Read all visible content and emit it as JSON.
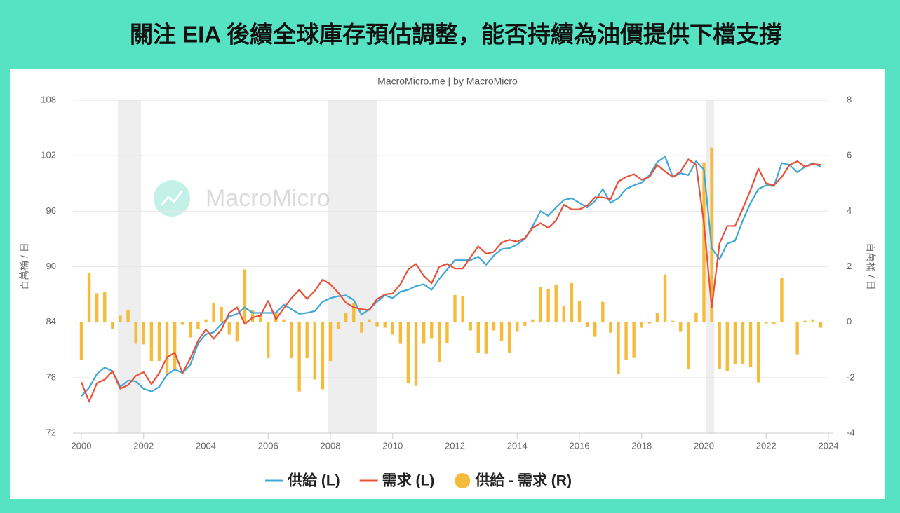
{
  "chart_data": {
    "type": "combo",
    "title": "關注 EIA 後續全球庫存預估調整，能否持續為油價提供下檔支撐",
    "subtitle": "MacroMicro.me | by MacroMicro",
    "watermark": "MacroMicro",
    "ylabel": "百萬桶 / 日",
    "y2label": "百萬桶 / 日",
    "x": [
      2000,
      2000.25,
      2000.5,
      2000.75,
      2001,
      2001.25,
      2001.5,
      2001.75,
      2002,
      2002.25,
      2002.5,
      2002.75,
      2003,
      2003.25,
      2003.5,
      2003.75,
      2004,
      2004.25,
      2004.5,
      2004.75,
      2005,
      2005.25,
      2005.5,
      2005.75,
      2006,
      2006.25,
      2006.5,
      2006.75,
      2007,
      2007.25,
      2007.5,
      2007.75,
      2008,
      2008.25,
      2008.5,
      2008.75,
      2009,
      2009.25,
      2009.5,
      2009.75,
      2010,
      2010.25,
      2010.5,
      2010.75,
      2011,
      2011.25,
      2011.5,
      2011.75,
      2012,
      2012.25,
      2012.5,
      2012.75,
      2013,
      2013.25,
      2013.5,
      2013.75,
      2014,
      2014.25,
      2014.5,
      2014.75,
      2015,
      2015.25,
      2015.5,
      2015.75,
      2016,
      2016.25,
      2016.5,
      2016.75,
      2017,
      2017.25,
      2017.5,
      2017.75,
      2018,
      2018.25,
      2018.5,
      2018.75,
      2019,
      2019.25,
      2019.5,
      2019.75,
      2020,
      2020.25,
      2020.5,
      2020.75,
      2021,
      2021.25,
      2021.5,
      2021.75,
      2022,
      2022.25,
      2022.5,
      2022.75,
      2023,
      2023.25,
      2023.5,
      2023.75
    ],
    "series": [
      {
        "name": "供給 (L)",
        "kind": "line",
        "color": "#3ea8d8",
        "values": [
          76.0,
          76.9,
          78.4,
          79.1,
          78.7,
          77.0,
          77.7,
          77.6,
          76.8,
          76.5,
          77.0,
          78.3,
          78.9,
          78.5,
          79.4,
          81.7,
          82.7,
          82.9,
          83.8,
          84.6,
          84.9,
          85.6,
          85.0,
          85.0,
          85.0,
          85.0,
          85.9,
          85.4,
          84.9,
          85.0,
          85.2,
          86.2,
          86.6,
          86.8,
          86.9,
          86.4,
          84.8,
          85.4,
          86.2,
          86.9,
          86.6,
          87.3,
          87.5,
          87.9,
          88.1,
          87.5,
          88.7,
          89.7,
          90.7,
          90.7,
          90.7,
          91.1,
          90.2,
          91.2,
          91.9,
          92.0,
          92.4,
          93.0,
          94.4,
          96.0,
          95.5,
          96.4,
          97.2,
          97.4,
          96.9,
          96.4,
          97.1,
          98.4,
          96.9,
          97.4,
          98.4,
          98.8,
          99.1,
          99.9,
          101.3,
          101.9,
          99.7,
          100.1,
          99.9,
          101.4,
          100.5,
          92.0,
          90.8,
          92.5,
          92.8,
          95.0,
          96.9,
          98.4,
          98.8,
          98.7,
          101.2,
          101.0,
          100.2,
          100.8,
          101.2,
          100.8
        ]
      },
      {
        "name": "需求 (L)",
        "kind": "line",
        "color": "#e8503a",
        "values": [
          77.5,
          75.4,
          77.4,
          77.8,
          78.7,
          76.8,
          77.2,
          78.2,
          78.6,
          77.3,
          78.5,
          80.2,
          80.7,
          78.5,
          80.1,
          82.0,
          83.2,
          82.2,
          83.2,
          85.0,
          85.6,
          83.8,
          84.5,
          84.7,
          86.3,
          84.3,
          85.5,
          86.6,
          87.5,
          86.5,
          87.4,
          88.6,
          88.1,
          87.2,
          86.1,
          85.6,
          85.4,
          85.3,
          86.5,
          87.0,
          87.1,
          88.1,
          89.7,
          90.3,
          89.0,
          88.2,
          90.0,
          90.3,
          89.8,
          89.8,
          91.0,
          92.2,
          91.4,
          91.6,
          92.6,
          92.9,
          92.7,
          93.1,
          94.2,
          94.7,
          94.2,
          95.0,
          96.7,
          96.2,
          96.2,
          96.6,
          97.5,
          97.5,
          97.3,
          99.2,
          99.7,
          100.0,
          99.4,
          99.7,
          101.0,
          100.3,
          99.7,
          100.3,
          101.6,
          101.0,
          94.7,
          85.6,
          92.5,
          94.4,
          94.4,
          96.3,
          98.3,
          100.6,
          99.0,
          98.8,
          99.7,
          101.0,
          101.4,
          100.8,
          101.1,
          101.0
        ]
      },
      {
        "name": "供給 - 需求 (R)",
        "kind": "bar",
        "axis": "y2",
        "color": "#f5bb3a",
        "values": [
          -1.35,
          1.77,
          1.04,
          1.09,
          -0.25,
          0.23,
          0.43,
          -0.78,
          -0.8,
          -1.4,
          -1.4,
          -1.9,
          -1.7,
          -0.1,
          -0.55,
          -0.25,
          0.1,
          0.68,
          0.55,
          -0.45,
          -0.7,
          1.9,
          0.43,
          0.25,
          -1.3,
          0.33,
          0.1,
          -1.3,
          -2.5,
          -1.3,
          -2.07,
          -2.42,
          -1.4,
          -0.25,
          0.33,
          0.68,
          -0.38,
          0.1,
          -0.15,
          -0.2,
          -0.45,
          -0.78,
          -2.2,
          -2.3,
          -0.78,
          -0.6,
          -1.44,
          -0.76,
          0.98,
          0.93,
          -0.3,
          -1.1,
          -1.14,
          -0.3,
          -0.68,
          -1.1,
          -0.35,
          -0.13,
          0.1,
          1.26,
          1.19,
          1.36,
          0.6,
          1.41,
          0.76,
          -0.18,
          -0.53,
          0.73,
          -0.38,
          -1.87,
          -1.36,
          -1.29,
          -0.2,
          -0.05,
          0.33,
          1.72,
          0.05,
          -0.35,
          -1.69,
          0.35,
          5.76,
          6.29,
          -1.69,
          -1.77,
          -1.52,
          -1.52,
          -1.62,
          -2.17,
          -0.05,
          -0.08,
          1.59,
          0.02,
          -1.16,
          0.05,
          0.1,
          -0.2
        ]
      }
    ],
    "shaded_regions": [
      [
        2001.17,
        2001.92
      ],
      [
        2007.92,
        2009.5
      ],
      [
        2020.08,
        2020.33
      ]
    ],
    "xlim": [
      2000,
      2024
    ],
    "xticks": [
      2000,
      2002,
      2004,
      2006,
      2008,
      2010,
      2012,
      2014,
      2016,
      2018,
      2020,
      2022,
      2024
    ],
    "ylim": [
      72,
      108
    ],
    "yticks": [
      72,
      78,
      84,
      90,
      96,
      102,
      108
    ],
    "y2lim": [
      -4,
      8
    ],
    "y2ticks": [
      -4,
      -2,
      0,
      2,
      4,
      6,
      8
    ],
    "grid": true,
    "legend": "bottom"
  }
}
